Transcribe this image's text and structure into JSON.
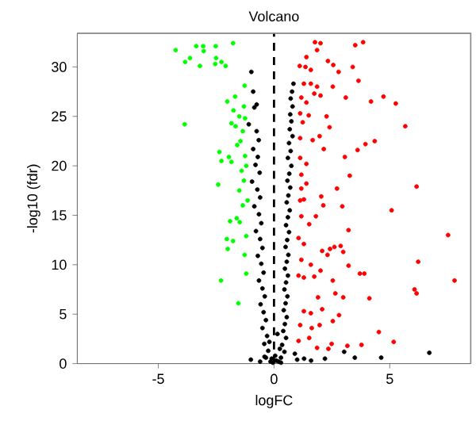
{
  "chart_data": {
    "type": "scatter",
    "title": "Volcano",
    "xlabel": "logFC",
    "ylabel": "-log10 (fdr)",
    "xlim": [
      -8.5,
      8.5
    ],
    "ylim": [
      0,
      33.4
    ],
    "xticks": [
      -5,
      0,
      5
    ],
    "yticks": [
      0,
      5,
      10,
      15,
      20,
      25,
      30
    ],
    "marker": "circle",
    "ref_lines": [
      {
        "axis": "x",
        "value": 0,
        "line_style": "dashed",
        "color": "#000000"
      }
    ],
    "series": [
      {
        "color": "#00ff00",
        "x": [
          -4.25,
          -3.84,
          -3.63,
          -3.36,
          -3.06,
          -3.04,
          -3.2,
          -2.52,
          -2.5,
          -2.54,
          -2.27,
          -2.09,
          -1.77,
          -3.86,
          -2.02,
          -1.68,
          -1.75,
          -1.84,
          -1.66,
          -2.36,
          -2.27,
          -1.95,
          -1.84,
          -1.59,
          -2.41,
          -1.9,
          -1.61,
          -2.04,
          -1.77,
          -2.0,
          -2.29,
          -1.54,
          -1.27,
          -1.14,
          -1.2,
          -1.27,
          -1.2,
          -1.48,
          -1.3,
          -1.5,
          -1.35,
          -1.45,
          -1.25,
          -1.4,
          -1.3,
          -1.5,
          -1.35,
          -1.25,
          -1.2
        ],
        "values": [
          31.7,
          30.5,
          30.9,
          32.1,
          32.1,
          31.6,
          30.1,
          32.1,
          30.9,
          30.3,
          30.5,
          30.1,
          32.4,
          24.2,
          26.5,
          27.0,
          25.6,
          24.3,
          24.0,
          21.4,
          20.5,
          20.9,
          20.4,
          22.1,
          18.1,
          14.4,
          14.7,
          12.6,
          12.4,
          11.6,
          8.4,
          6.1,
          28.1,
          16.5,
          12.9,
          11.0,
          9.1,
          14.3,
          26,
          25,
          23.5,
          22.5,
          21,
          19.5,
          18.5,
          17.5,
          16,
          24.8,
          20
        ]
      },
      {
        "color": "#ff0000",
        "x": [
          1.77,
          2.01,
          1.86,
          3.51,
          3.85,
          1.4,
          1.11,
          1.36,
          1.59,
          2.33,
          2.56,
          3.4,
          2.79,
          3.65,
          1.29,
          1.59,
          1.86,
          2.54,
          1.74,
          2.01,
          1.18,
          3.1,
          4.19,
          4.73,
          5.26,
          1.4,
          1.13,
          1.5,
          2.27,
          1.24,
          2.4,
          5.67,
          1.13,
          1.67,
          1.97,
          4.35,
          3.95,
          3.61,
          2.15,
          3.06,
          1.13,
          1.4,
          1.18,
          3.27,
          2.72,
          6.16,
          1.18,
          1.4,
          2.04,
          1.13,
          1.29,
          2.13,
          2.95,
          5.08,
          1.18,
          1.81,
          1.52,
          3.22,
          7.52,
          1.06,
          1.29,
          2.42,
          2.61,
          2.88,
          2.99,
          2.08,
          2.31,
          1.18,
          1.59,
          6.23,
          3.22,
          3.71,
          3.9,
          7.8,
          1.06,
          1.29,
          1.74,
          2.01,
          2.54,
          6.07,
          6.16,
          2.65,
          2.99,
          4.12,
          1.9,
          1.29,
          1.59,
          2.08,
          2.54,
          2.81,
          1.13,
          1.63,
          1.97,
          4.53,
          5.17,
          3.78,
          3.17,
          2.49,
          1.06,
          1.52,
          2.35,
          1.86
        ],
        "values": [
          32.5,
          32.4,
          31.7,
          32.2,
          32.5,
          31.0,
          30.1,
          30.0,
          29.7,
          30.6,
          30.2,
          30.0,
          29.5,
          28.6,
          28.3,
          28.3,
          28.0,
          28.0,
          27.3,
          27.1,
          26.9,
          26.9,
          26.5,
          27.0,
          26.3,
          26.4,
          25.3,
          25.1,
          25.0,
          24.4,
          23.9,
          24.0,
          22.8,
          22.6,
          23.0,
          22.5,
          22.2,
          21.6,
          21.7,
          20.9,
          20.8,
          20.2,
          19.1,
          19.0,
          17.7,
          17.9,
          17.7,
          18.2,
          16.9,
          16.5,
          16.6,
          16.0,
          15.9,
          15.5,
          14.9,
          14.9,
          14.1,
          13.5,
          13.0,
          12.7,
          12.1,
          11.6,
          11.8,
          11.9,
          11.3,
          11.4,
          11.0,
          10.5,
          10.0,
          10.3,
          9.9,
          9.1,
          9.1,
          8.4,
          8.9,
          8.7,
          8.8,
          9.4,
          8.4,
          7.5,
          7.1,
          7.1,
          6.7,
          6.6,
          6.7,
          5.3,
          5.1,
          5.5,
          4.3,
          4.9,
          3.9,
          3.6,
          3.9,
          3.2,
          2.2,
          1.9,
          1.8,
          2.0,
          2.3,
          2.6,
          1.5,
          1.6
        ]
      },
      {
        "color": "#000000",
        "x": [
          0.84,
          0.78,
          0.72,
          0.8,
          0.7,
          0.75,
          0.68,
          0.8,
          0.65,
          0.72,
          0.6,
          0.75,
          0.66,
          0.58,
          0.7,
          0.62,
          0.55,
          0.68,
          0.6,
          0.52,
          0.65,
          0.57,
          0.5,
          0.62,
          0.55,
          0.47,
          0.6,
          0.52,
          0.45,
          0.58,
          0.5,
          0.42,
          0.55,
          0.47,
          0.4,
          0.52,
          0.35,
          0.45,
          0.3,
          0.2,
          -0.98,
          -0.9,
          -0.75,
          -0.85,
          -1.09,
          -0.75,
          -0.66,
          -0.9,
          -0.7,
          -0.8,
          -0.62,
          -0.95,
          -0.72,
          -0.6,
          -0.85,
          -0.65,
          -0.55,
          -0.78,
          -0.6,
          -0.5,
          -0.7,
          -0.55,
          -0.45,
          -0.65,
          -0.5,
          -0.4,
          -0.58,
          -0.45,
          -0.35,
          -0.5,
          -0.3,
          -0.42,
          -0.25,
          -0.35,
          -0.15,
          0.1,
          0.05,
          -0.1,
          0.25,
          -0.2,
          0.15,
          0.3,
          -0.05,
          1.0,
          0.9,
          1.3,
          1.6,
          -0.6,
          -0.41,
          3.03,
          3.49,
          4.63,
          6.71,
          2.2,
          -1.0
        ],
        "values": [
          28.3,
          27.5,
          26.8,
          26,
          25.2,
          24.5,
          23.7,
          23,
          22.3,
          21.5,
          20.8,
          20,
          19.2,
          18.5,
          17.8,
          17,
          16.3,
          15.5,
          14.8,
          14,
          13.3,
          12.5,
          11.8,
          11,
          10.3,
          9.6,
          8.9,
          8.2,
          7.5,
          6.8,
          6.1,
          5.4,
          4.7,
          4,
          3.3,
          2.6,
          1.9,
          1.2,
          0.6,
          0.2,
          29.5,
          27.5,
          26.2,
          25.9,
          24.2,
          23.5,
          22.6,
          21.7,
          20.9,
          20.1,
          19.3,
          18.4,
          17.6,
          16.8,
          15.9,
          15.1,
          14.2,
          13.4,
          12.6,
          11.7,
          10.9,
          10.1,
          9.2,
          8.4,
          7.6,
          6.8,
          6,
          5.2,
          4.4,
          3.6,
          2.8,
          2,
          1.3,
          0.6,
          0.2,
          0.3,
          0.8,
          0.5,
          1.5,
          2.2,
          3,
          0.1,
          0.1,
          0.4,
          1.0,
          0.5,
          0.3,
          0.2,
          0.7,
          1.2,
          0.6,
          0.6,
          1.1,
          0.5,
          0.4
        ]
      }
    ]
  }
}
